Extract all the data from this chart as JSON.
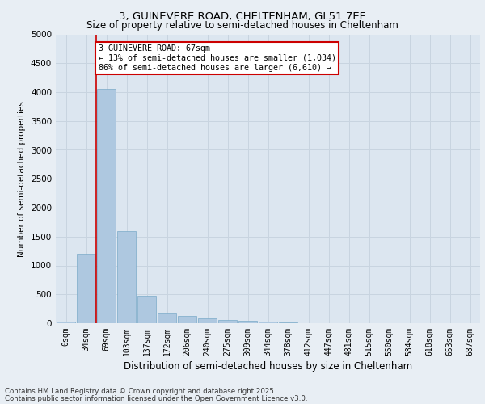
{
  "title": "3, GUINEVERE ROAD, CHELTENHAM, GL51 7EF",
  "subtitle": "Size of property relative to semi-detached houses in Cheltenham",
  "xlabel": "Distribution of semi-detached houses by size in Cheltenham",
  "ylabel": "Number of semi-detached properties",
  "categories": [
    "0sqm",
    "34sqm",
    "69sqm",
    "103sqm",
    "137sqm",
    "172sqm",
    "206sqm",
    "240sqm",
    "275sqm",
    "309sqm",
    "344sqm",
    "378sqm",
    "412sqm",
    "447sqm",
    "481sqm",
    "515sqm",
    "550sqm",
    "584sqm",
    "618sqm",
    "653sqm",
    "687sqm"
  ],
  "values": [
    30,
    1200,
    4060,
    1600,
    480,
    180,
    130,
    80,
    60,
    40,
    30,
    10,
    5,
    2,
    1,
    1,
    1,
    0,
    0,
    0,
    0
  ],
  "bar_color": "#aec8e0",
  "bar_edge_color": "#7aaac8",
  "property_line_x": 1.5,
  "property_sqm": 67,
  "pct_smaller": 13,
  "count_smaller": "1,034",
  "pct_larger": 86,
  "count_larger": "6,610",
  "annotation_box_color": "#cc0000",
  "ylim": [
    0,
    5000
  ],
  "yticks": [
    0,
    500,
    1000,
    1500,
    2000,
    2500,
    3000,
    3500,
    4000,
    4500,
    5000
  ],
  "grid_color": "#c8d4e0",
  "bg_color": "#e8eef4",
  "plot_bg_color": "#dce6f0",
  "footer_line1": "Contains HM Land Registry data © Crown copyright and database right 2025.",
  "footer_line2": "Contains public sector information licensed under the Open Government Licence v3.0."
}
